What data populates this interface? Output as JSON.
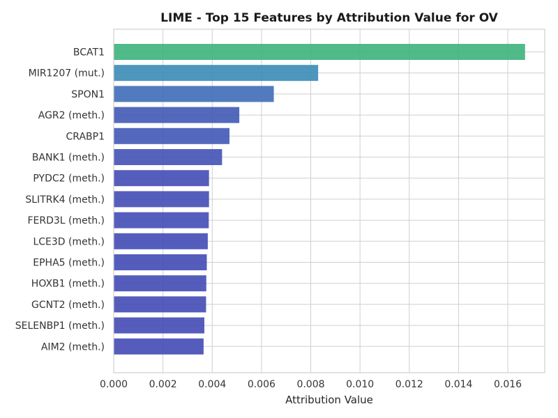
{
  "chart_data": {
    "type": "bar",
    "orientation": "horizontal",
    "title": "LIME - Top 15 Features by Attribution Value for OV",
    "xlabel": "Attribution Value",
    "ylabel": "",
    "xlim": [
      0,
      0.0175
    ],
    "xticks": [
      0.0,
      0.002,
      0.004,
      0.006,
      0.008,
      0.01,
      0.012,
      0.014,
      0.016
    ],
    "xtick_labels": [
      "0.000",
      "0.002",
      "0.004",
      "0.006",
      "0.008",
      "0.010",
      "0.012",
      "0.014",
      "0.016"
    ],
    "grid": true,
    "categories": [
      "BCAT1",
      "MIR1207 (mut.)",
      "SPON1",
      "AGR2 (meth.)",
      "CRABP1",
      "BANK1 (meth.)",
      "PYDC2 (meth.)",
      "SLITRK4 (meth.)",
      "FERD3L (meth.)",
      "LCE3D (meth.)",
      "EPHA5 (meth.)",
      "HOXB1 (meth.)",
      "GCNT2 (meth.)",
      "SELENBP1 (meth.)",
      "AIM2 (meth.)"
    ],
    "values": [
      0.0167,
      0.0083,
      0.0065,
      0.0051,
      0.0047,
      0.0044,
      0.00387,
      0.00387,
      0.00386,
      0.00382,
      0.00378,
      0.00376,
      0.00375,
      0.00368,
      0.00365
    ],
    "colors": [
      "#3db37b",
      "#3a8bb5",
      "#3f6db8",
      "#4059b5",
      "#4158b6",
      "#4252b6",
      "#434cb5",
      "#434cb5",
      "#434cb5",
      "#434bb5",
      "#434bb5",
      "#434bb5",
      "#434bb5",
      "#444ab5",
      "#444ab5"
    ]
  }
}
